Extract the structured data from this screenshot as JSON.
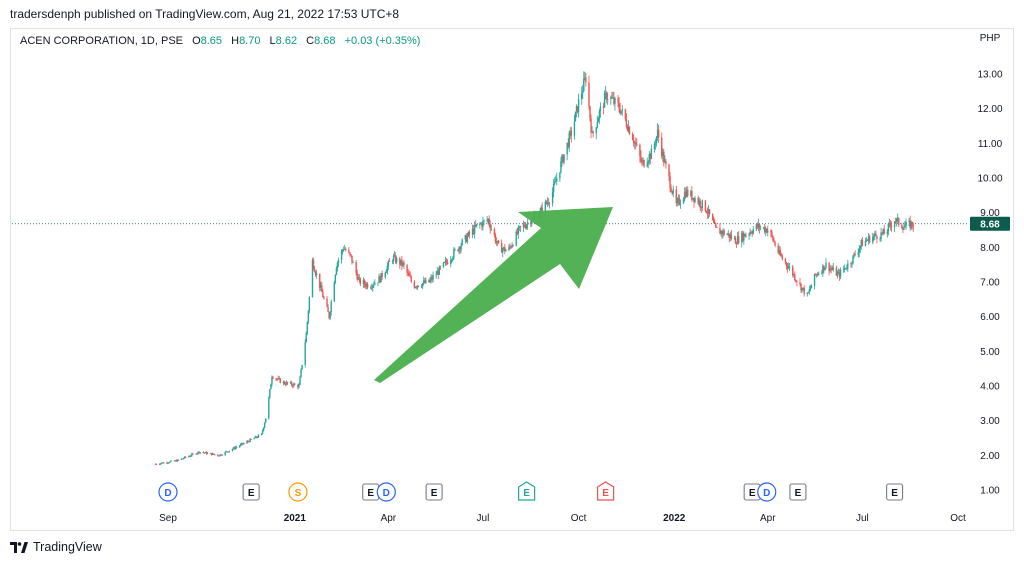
{
  "header": {
    "published": "tradersdenph published on TradingView.com, Aug 21, 2022 17:53 UTC+8"
  },
  "legend": {
    "symbol": "ACEN CORPORATION, 1D, PSE",
    "o_label": "O",
    "o": "8.65",
    "h_label": "H",
    "h": "8.70",
    "l_label": "L",
    "l": "8.62",
    "c_label": "C",
    "c": "8.68",
    "change": "+0.03 (+0.35%)"
  },
  "footer": {
    "brand": "TradingView"
  },
  "colors": {
    "up": "#26a69a",
    "down": "#ef5350",
    "arrow": "#4caf50",
    "price_tag": "#0b5c4c",
    "dividend": "#2962ff",
    "split": "#ff9800",
    "earnings": "#131722"
  },
  "chart_data": {
    "type": "candlestick",
    "currency_label": "PHP",
    "ylim": [
      0.7,
      13.55
    ],
    "y_ticks": [
      "13.00",
      "12.00",
      "11.00",
      "10.00",
      "9.00",
      "8.00",
      "7.00",
      "6.00",
      "5.00",
      "4.00",
      "3.00",
      "2.00",
      "1.00"
    ],
    "x_ticks": [
      {
        "label": "Sep",
        "date": "2020-09-01",
        "bold": false
      },
      {
        "label": "2021",
        "date": "2021-01-01",
        "bold": true
      },
      {
        "label": "Apr",
        "date": "2021-04-01",
        "bold": false
      },
      {
        "label": "Jul",
        "date": "2021-07-01",
        "bold": false
      },
      {
        "label": "Oct",
        "date": "2021-10-01",
        "bold": false
      },
      {
        "label": "2022",
        "date": "2022-01-01",
        "bold": true
      },
      {
        "label": "Apr",
        "date": "2022-04-01",
        "bold": false
      },
      {
        "label": "Jul",
        "date": "2022-07-01",
        "bold": false
      },
      {
        "label": "Oct",
        "date": "2022-10-01",
        "bold": false
      }
    ],
    "last_price": "8.68",
    "last_value": 8.68,
    "path": [
      [
        "2020-08-20",
        1.75
      ],
      [
        "2020-09-10",
        1.85
      ],
      [
        "2020-10-01",
        2.1
      ],
      [
        "2020-10-20",
        2.0
      ],
      [
        "2020-11-10",
        2.3
      ],
      [
        "2020-11-30",
        2.6
      ],
      [
        "2020-12-05",
        3.2
      ],
      [
        "2020-12-10",
        4.3
      ],
      [
        "2020-12-20",
        4.1
      ],
      [
        "2021-01-05",
        4.0
      ],
      [
        "2021-01-12",
        5.5
      ],
      [
        "2021-01-18",
        7.6
      ],
      [
        "2021-01-26",
        6.8
      ],
      [
        "2021-02-03",
        6.0
      ],
      [
        "2021-02-10",
        7.5
      ],
      [
        "2021-02-17",
        8.0
      ],
      [
        "2021-02-24",
        7.7
      ],
      [
        "2021-03-04",
        7.0
      ],
      [
        "2021-03-14",
        6.9
      ],
      [
        "2021-03-24",
        7.1
      ],
      [
        "2021-04-05",
        7.7
      ],
      [
        "2021-04-15",
        7.5
      ],
      [
        "2021-04-25",
        6.9
      ],
      [
        "2021-05-10",
        7.0
      ],
      [
        "2021-05-25",
        7.5
      ],
      [
        "2021-06-10",
        8.1
      ],
      [
        "2021-06-25",
        8.6
      ],
      [
        "2021-07-06",
        8.8
      ],
      [
        "2021-07-16",
        8.0
      ],
      [
        "2021-07-25",
        7.9
      ],
      [
        "2021-08-05",
        8.5
      ],
      [
        "2021-08-16",
        8.8
      ],
      [
        "2021-08-25",
        9.0
      ],
      [
        "2021-09-05",
        9.5
      ],
      [
        "2021-09-15",
        10.5
      ],
      [
        "2021-09-25",
        11.4
      ],
      [
        "2021-10-02",
        12.3
      ],
      [
        "2021-10-08",
        12.9
      ],
      [
        "2021-10-14",
        11.2
      ],
      [
        "2021-10-20",
        11.8
      ],
      [
        "2021-10-28",
        12.4
      ],
      [
        "2021-11-10",
        12.0
      ],
      [
        "2021-11-22",
        11.2
      ],
      [
        "2021-12-01",
        10.4
      ],
      [
        "2021-12-10",
        10.7
      ],
      [
        "2021-12-16",
        11.3
      ],
      [
        "2021-12-23",
        10.4
      ],
      [
        "2022-01-03",
        9.2
      ],
      [
        "2022-01-12",
        9.6
      ],
      [
        "2022-01-22",
        9.4
      ],
      [
        "2022-02-01",
        9.1
      ],
      [
        "2022-02-10",
        8.5
      ],
      [
        "2022-02-20",
        8.4
      ],
      [
        "2022-03-01",
        8.2
      ],
      [
        "2022-03-12",
        8.4
      ],
      [
        "2022-03-22",
        8.6
      ],
      [
        "2022-04-02",
        8.5
      ],
      [
        "2022-04-12",
        7.8
      ],
      [
        "2022-04-22",
        7.4
      ],
      [
        "2022-05-02",
        6.9
      ],
      [
        "2022-05-09",
        6.6
      ],
      [
        "2022-05-17",
        7.2
      ],
      [
        "2022-05-27",
        7.5
      ],
      [
        "2022-06-08",
        7.2
      ],
      [
        "2022-06-20",
        7.6
      ],
      [
        "2022-06-30",
        8.1
      ],
      [
        "2022-07-10",
        8.3
      ],
      [
        "2022-07-22",
        8.4
      ],
      [
        "2022-08-01",
        8.8
      ],
      [
        "2022-08-10",
        8.6
      ],
      [
        "2022-08-19",
        8.68
      ]
    ],
    "events": [
      {
        "letter": "D",
        "date": "2020-09-01",
        "kind": "dividend"
      },
      {
        "letter": "E",
        "date": "2020-11-20",
        "kind": "earnings"
      },
      {
        "letter": "S",
        "date": "2021-01-04",
        "kind": "split"
      },
      {
        "letter": "E",
        "date": "2021-03-15",
        "kind": "earnings"
      },
      {
        "letter": "D",
        "date": "2021-03-30",
        "kind": "dividend"
      },
      {
        "letter": "E",
        "date": "2021-05-15",
        "kind": "earnings"
      },
      {
        "letter": "E",
        "date": "2021-08-12",
        "kind": "earnings-green"
      },
      {
        "letter": "E",
        "date": "2021-10-27",
        "kind": "earnings-red"
      },
      {
        "letter": "E",
        "date": "2022-03-17",
        "kind": "earnings"
      },
      {
        "letter": "D",
        "date": "2022-03-31",
        "kind": "dividend"
      },
      {
        "letter": "E",
        "date": "2022-04-30",
        "kind": "earnings"
      },
      {
        "letter": "E",
        "date": "2022-08-01",
        "kind": "earnings"
      }
    ]
  }
}
